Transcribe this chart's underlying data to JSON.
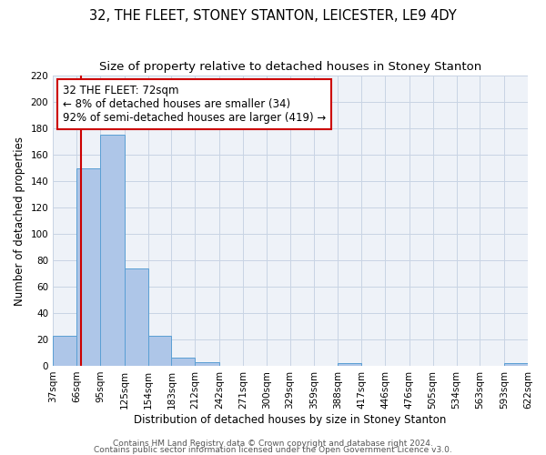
{
  "title1": "32, THE FLEET, STONEY STANTON, LEICESTER, LE9 4DY",
  "title2": "Size of property relative to detached houses in Stoney Stanton",
  "xlabel": "Distribution of detached houses by size in Stoney Stanton",
  "ylabel": "Number of detached properties",
  "bin_edges": [
    37,
    66,
    95,
    125,
    154,
    183,
    212,
    242,
    271,
    300,
    329,
    359,
    388,
    417,
    446,
    476,
    505,
    534,
    563,
    593,
    622
  ],
  "bar_heights": [
    23,
    150,
    175,
    74,
    23,
    6,
    3,
    0,
    0,
    0,
    0,
    0,
    2,
    0,
    0,
    0,
    0,
    0,
    0,
    2
  ],
  "bar_color": "#aec6e8",
  "bar_edgecolor": "#5a9fd4",
  "property_size": 72,
  "property_line_color": "#cc0000",
  "annotation_line1": "32 THE FLEET: 72sqm",
  "annotation_line2": "← 8% of detached houses are smaller (34)",
  "annotation_line3": "92% of semi-detached houses are larger (419) →",
  "annotation_box_edgecolor": "#cc0000",
  "ylim": [
    0,
    220
  ],
  "yticks": [
    0,
    20,
    40,
    60,
    80,
    100,
    120,
    140,
    160,
    180,
    200,
    220
  ],
  "footer1": "Contains HM Land Registry data © Crown copyright and database right 2024.",
  "footer2": "Contains public sector information licensed under the Open Government Licence v3.0.",
  "bg_color": "#eef2f8",
  "grid_color": "#c8d4e4",
  "title_fontsize": 10.5,
  "subtitle_fontsize": 9.5,
  "axis_label_fontsize": 8.5,
  "tick_fontsize": 7.5,
  "annotation_fontsize": 8.5,
  "footer_fontsize": 6.5
}
